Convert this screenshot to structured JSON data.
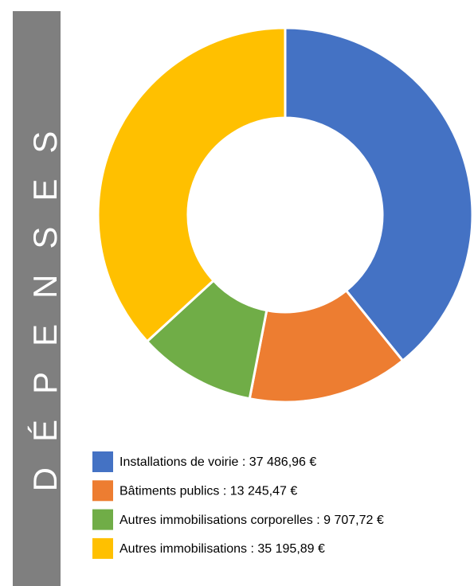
{
  "chart_data": {
    "type": "donut",
    "title": "DÉPENSES",
    "categories": [
      "Installations de voirie : 37 486,96 €",
      "Bâtiments publics : 13 245,47 €",
      "Autres immobilisations corporelles : 9 707,72 €",
      "Autres immobilisations : 35 195,89 €"
    ],
    "values": [
      37486.96,
      13245.47,
      9707.72,
      35195.89
    ],
    "colors": [
      "#4472c4",
      "#ed7d31",
      "#70ad47",
      "#ffc000"
    ]
  }
}
